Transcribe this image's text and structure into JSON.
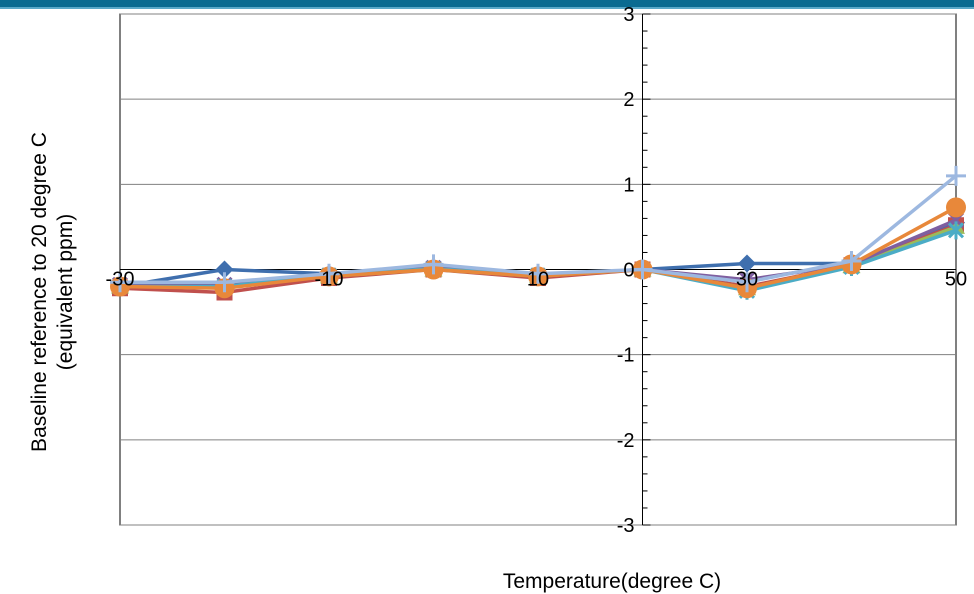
{
  "chart_data": {
    "type": "line",
    "xlabel": "Temperature(degree C)",
    "ylabel_lines": [
      "Baseline reference to 20 degree C",
      "(equivalent ppm)"
    ],
    "x_ticks": [
      "-30",
      "-10",
      "10",
      "30",
      "50"
    ],
    "y_ticks": [
      "3",
      "2",
      "1",
      "0",
      "-1",
      "-2",
      "-3"
    ],
    "xlim": [
      -30,
      50
    ],
    "ylim": [
      -3,
      3
    ],
    "grid": "horizontal",
    "x": [
      -30,
      -20,
      -10,
      0,
      10,
      20,
      30,
      40,
      50
    ],
    "series": [
      {
        "color": "#3f6fae",
        "marker": "diamond",
        "values": [
          -0.2,
          0.0,
          -0.05,
          0.02,
          -0.08,
          0.0,
          0.07,
          0.07,
          0.55
        ]
      },
      {
        "color": "#c0504d",
        "marker": "square",
        "values": [
          -0.22,
          -0.27,
          -0.1,
          0.0,
          -0.1,
          0.0,
          -0.2,
          0.05,
          0.52
        ]
      },
      {
        "color": "#9bbb59",
        "marker": "triangle",
        "values": [
          -0.2,
          -0.2,
          -0.08,
          0.0,
          -0.08,
          0.0,
          -0.22,
          0.04,
          0.5
        ]
      },
      {
        "color": "#7f5fa0",
        "marker": "x",
        "values": [
          -0.18,
          -0.18,
          -0.07,
          0.02,
          -0.07,
          0.0,
          -0.12,
          0.06,
          0.58
        ]
      },
      {
        "color": "#4bacc6",
        "marker": "star",
        "values": [
          -0.2,
          -0.2,
          -0.07,
          0.01,
          -0.07,
          0.0,
          -0.25,
          0.03,
          0.46
        ]
      },
      {
        "color": "#e8883a",
        "marker": "circle",
        "values": [
          -0.2,
          -0.22,
          -0.08,
          0.0,
          -0.08,
          0.0,
          -0.22,
          0.06,
          0.73
        ]
      },
      {
        "color": "#9db8e0",
        "marker": "plus",
        "values": [
          -0.15,
          -0.15,
          -0.05,
          0.06,
          -0.05,
          0.0,
          -0.15,
          0.1,
          1.1
        ]
      }
    ]
  }
}
